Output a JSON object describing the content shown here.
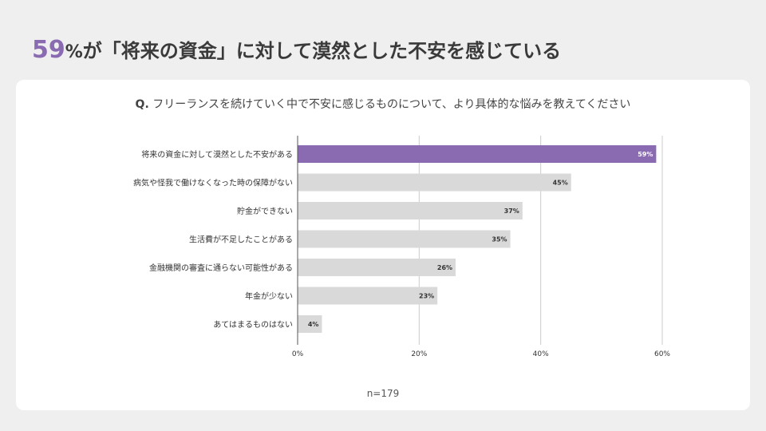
{
  "headline": {
    "number": "59",
    "percent": "%",
    "text": "が「将来の資金」に対して漠然とした不安を感じている"
  },
  "question": {
    "prefix": "Q.",
    "text": " フリーランスを続けていく中で不安に感じるものについて、より具体的な悩みを教えてください"
  },
  "note": "n=179",
  "colors": {
    "highlight": "#8a6ab1",
    "bar": "#d9d9d9",
    "grid": "#cccccc",
    "text": "#333333"
  },
  "chart_data": {
    "type": "bar",
    "orientation": "horizontal",
    "categories": [
      "将来の資金に対して漠然とした不安がある",
      "病気や怪我で働けなくなった時の保障がない",
      "貯金ができない",
      "生活費が不足したことがある",
      "金融機関の審査に通らない可能性がある",
      "年金が少ない",
      "あてはまるものはない"
    ],
    "values": [
      59,
      45,
      37,
      35,
      26,
      23,
      4
    ],
    "value_labels": [
      "59%",
      "45%",
      "37%",
      "35%",
      "26%",
      "23%",
      "4%"
    ],
    "xlim": [
      0,
      60
    ],
    "xticks": [
      0,
      20,
      40,
      60
    ],
    "xtick_labels": [
      "0%",
      "20%",
      "40%",
      "60%"
    ],
    "highlight_index": 0,
    "grid": true
  }
}
